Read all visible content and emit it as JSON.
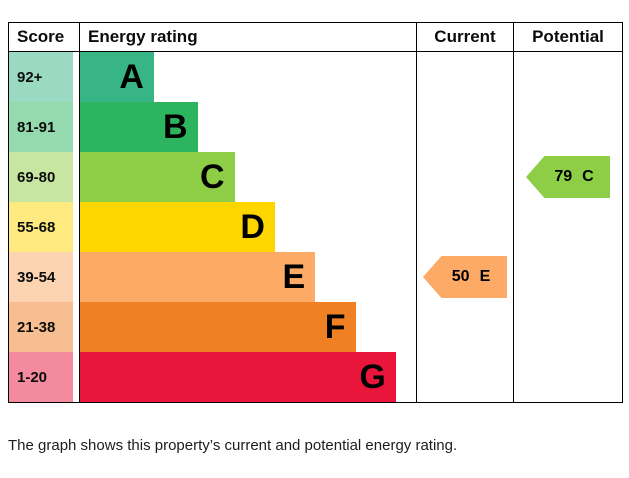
{
  "header": {
    "score_label": "Score",
    "rating_label": "Energy rating",
    "current_label": "Current",
    "potential_label": "Potential"
  },
  "chart_data": {
    "type": "bar",
    "chart_kind": "epc-energy-rating",
    "columns": [
      "Score",
      "Energy rating",
      "Current",
      "Potential"
    ],
    "bands": [
      {
        "letter": "A",
        "score": "92+",
        "color": "#38b586",
        "tint": "#9bdac2",
        "width_pct": 22
      },
      {
        "letter": "B",
        "score": "81-91",
        "color": "#2cb45f",
        "tint": "#95d9af",
        "width_pct": 35
      },
      {
        "letter": "C",
        "score": "69-80",
        "color": "#8dce46",
        "tint": "#c6e6a2",
        "width_pct": 46
      },
      {
        "letter": "D",
        "score": "55-68",
        "color": "#ffd500",
        "tint": "#ffea80",
        "width_pct": 58
      },
      {
        "letter": "E",
        "score": "39-54",
        "color": "#fcaa65",
        "tint": "#fdd4b2",
        "width_pct": 70
      },
      {
        "letter": "F",
        "score": "21-38",
        "color": "#ef8023",
        "tint": "#f7bf91",
        "width_pct": 82
      },
      {
        "letter": "G",
        "score": "1-20",
        "color": "#e9153b",
        "tint": "#f48a9d",
        "width_pct": 94
      }
    ],
    "current": {
      "score": "50",
      "band": "E",
      "row": 4,
      "color": "#fcaa65"
    },
    "potential": {
      "score": "79",
      "band": "C",
      "row": 2,
      "color": "#8dce46"
    }
  },
  "caption": "The graph shows this property’s current and potential energy rating."
}
